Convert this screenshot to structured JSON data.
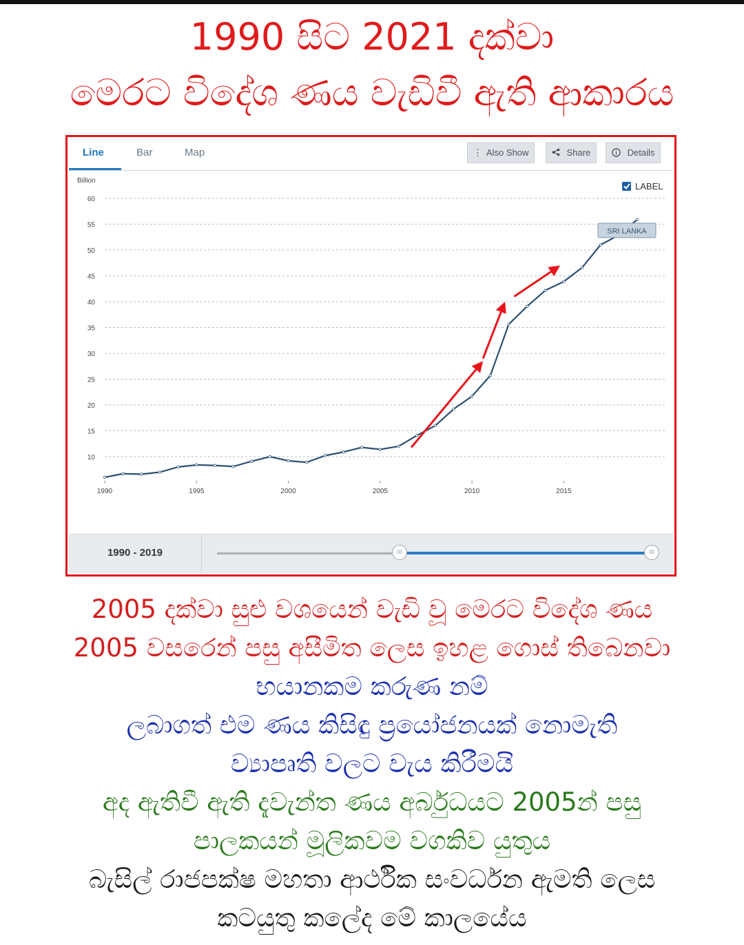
{
  "headline": {
    "line1": "1990 සිට 2021 දක්වා",
    "line2": "මෙරට විදේශ ණය වැඩිවී ඇති ආකාරය"
  },
  "widget": {
    "tabs": [
      "Line",
      "Bar",
      "Map"
    ],
    "active_tab": "Line",
    "buttons": {
      "also_show": "Also Show",
      "share": "Share",
      "details": "Details"
    },
    "label_toggle": "LABEL",
    "range_label": "1990 - 2019",
    "slider_handle_glyph": "III"
  },
  "chart_data": {
    "type": "line",
    "ylabel": "Billion",
    "ylim": [
      5,
      60
    ],
    "yticks": [
      10,
      15,
      20,
      25,
      30,
      35,
      40,
      45,
      50,
      55,
      60
    ],
    "xlim": [
      1990,
      2020
    ],
    "xticks": [
      1990,
      1995,
      2000,
      2005,
      2010,
      2015
    ],
    "grid": true,
    "series": [
      {
        "name": "SRI LANKA",
        "color": "#2c4f73",
        "x": [
          1990,
          1991,
          1992,
          1993,
          1994,
          1995,
          1996,
          1997,
          1998,
          1999,
          2000,
          2001,
          2002,
          2003,
          2004,
          2005,
          2006,
          2007,
          2008,
          2009,
          2010,
          2011,
          2012,
          2013,
          2014,
          2015,
          2016,
          2017,
          2018,
          2019
        ],
        "values": [
          6.0,
          6.7,
          6.6,
          7.0,
          8.0,
          8.4,
          8.3,
          8.1,
          9.1,
          10.0,
          9.2,
          8.9,
          10.2,
          10.9,
          11.8,
          11.4,
          12.0,
          14.1,
          16.0,
          19.2,
          21.7,
          25.7,
          35.6,
          39.1,
          42.2,
          43.9,
          46.6,
          51.0,
          52.9,
          55.9
        ]
      }
    ],
    "annotation_arrows": [
      {
        "from": [
          2006.7,
          11.8
        ],
        "to": [
          2010.6,
          28.5
        ]
      },
      {
        "from": [
          2010.6,
          29.0
        ],
        "to": [
          2011.8,
          40.0
        ]
      },
      {
        "from": [
          2012.3,
          41.0
        ],
        "to": [
          2014.8,
          47.0
        ]
      }
    ],
    "arrow_color": "#e8151b"
  },
  "captions": [
    {
      "text": "2005 දක්වා සුළු වශයෙන් වැඩි වූ මෙරට විදේශ ණය",
      "color": "red"
    },
    {
      "text": "2005 වසරෙන් පසු අසීමිත ලෙස ඉහළ ගොස් තිබෙනවා",
      "color": "red"
    },
    {
      "text": "භයානකම කරුණ නම්",
      "color": "blue"
    },
    {
      "text": "ලබාගත් එම ණය කිසිඳු ප්‍රයෝජනයක් නොමැති",
      "color": "blue"
    },
    {
      "text": "ව්‍යාපෘති වලට වැය කිරීමයි",
      "color": "blue"
    },
    {
      "text": "අද ඇතිවී ඇති දැවැන්ත ණය අර්බුධයට 2005න් පසු",
      "color": "green"
    },
    {
      "text": "පාලකයන් මූලිකවම වගකිව යුතුය",
      "color": "green"
    },
    {
      "text": "බැසිල් රාජපක්ෂ මහතා ආර්ථික සංවර්ධන ඇමති ලෙස",
      "color": "black"
    },
    {
      "text": "කටයුතු කලේද මේ කාලයේය",
      "color": "black"
    }
  ]
}
